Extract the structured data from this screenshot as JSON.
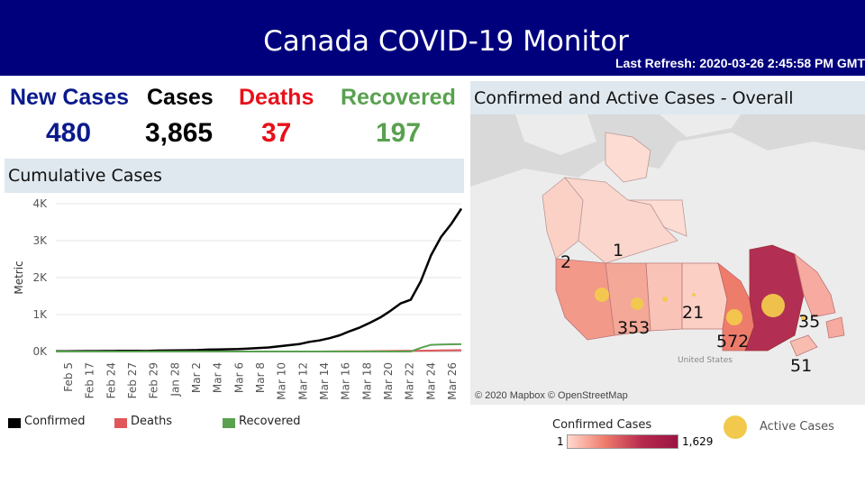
{
  "header": {
    "title": "Canada COVID-19 Monitor",
    "last_refresh": "Last Refresh: 2020-03-26 2:45:58 PM GMT",
    "background": "#00007d"
  },
  "kpis": [
    {
      "label": "New Cases",
      "value": "480",
      "color": "#0a1a8c"
    },
    {
      "label": "Cases",
      "value": "3,865",
      "color": "#000000"
    },
    {
      "label": "Deaths",
      "value": "37",
      "color": "#e8101a"
    },
    {
      "label": "Recovered",
      "value": "197",
      "color": "#59a14f"
    }
  ],
  "cumulative": {
    "title": "Cumulative Cases",
    "legend": [
      {
        "name": "Confirmed",
        "color": "#000000"
      },
      {
        "name": "Deaths",
        "color": "#e15759"
      },
      {
        "name": "Recovered",
        "color": "#59a14f"
      }
    ]
  },
  "map": {
    "title": "Confirmed and Active Cases - Overall",
    "credit": "© 2020 Mapbox © OpenStreetMap",
    "labels": [
      "2",
      "1",
      "353",
      "21",
      "572",
      "35",
      "51"
    ],
    "place_label": "United States",
    "legend": {
      "confirmed_title": "Confirmed Cases",
      "min": "1",
      "max": "1,629",
      "active_label": "Active Cases",
      "active_color": "#f2c94c"
    }
  },
  "chart_data": {
    "type": "line",
    "title": "Cumulative Cases",
    "ylabel": "Metric",
    "xlabel": "",
    "ylim": [
      0,
      4000
    ],
    "yticks": [
      0,
      1000,
      2000,
      3000,
      4000
    ],
    "ytick_labels": [
      "0K",
      "1K",
      "2K",
      "3K",
      "4K"
    ],
    "grid": true,
    "legend_position": "bottom",
    "x_tick_labels": [
      "Feb 5",
      "Feb 17",
      "Feb 24",
      "Feb 27",
      "Feb 29",
      "Jan 28",
      "Mar 2",
      "Mar 4",
      "Mar 6",
      "Mar 8",
      "Mar 10",
      "Mar 12",
      "Mar 14",
      "Mar 16",
      "Mar 18",
      "Mar 20",
      "Mar 22",
      "Mar 24",
      "Mar 26"
    ],
    "series": [
      {
        "name": "Confirmed",
        "color": "#000000",
        "values": [
          5,
          8,
          10,
          11,
          13,
          15,
          18,
          20,
          18,
          15,
          25,
          28,
          30,
          33,
          40,
          50,
          55,
          60,
          65,
          80,
          95,
          110,
          140,
          170,
          200,
          260,
          300,
          360,
          440,
          550,
          650,
          780,
          920,
          1100,
          1300,
          1400,
          1900,
          2600,
          3100,
          3450,
          3865
        ]
      },
      {
        "name": "Deaths",
        "color": "#e15759",
        "values": [
          0,
          0,
          0,
          0,
          0,
          0,
          0,
          0,
          0,
          0,
          0,
          0,
          0,
          0,
          0,
          0,
          0,
          0,
          0,
          0,
          1,
          1,
          1,
          1,
          1,
          1,
          1,
          2,
          4,
          5,
          8,
          10,
          12,
          15,
          18,
          20,
          22,
          25,
          30,
          35,
          37
        ]
      },
      {
        "name": "Recovered",
        "color": "#59a14f",
        "values": [
          0,
          0,
          0,
          0,
          0,
          0,
          0,
          0,
          0,
          0,
          0,
          0,
          0,
          0,
          0,
          0,
          0,
          0,
          0,
          0,
          0,
          0,
          0,
          0,
          0,
          0,
          0,
          0,
          0,
          0,
          0,
          0,
          0,
          0,
          0,
          0,
          100,
          180,
          190,
          195,
          197
        ]
      }
    ]
  }
}
